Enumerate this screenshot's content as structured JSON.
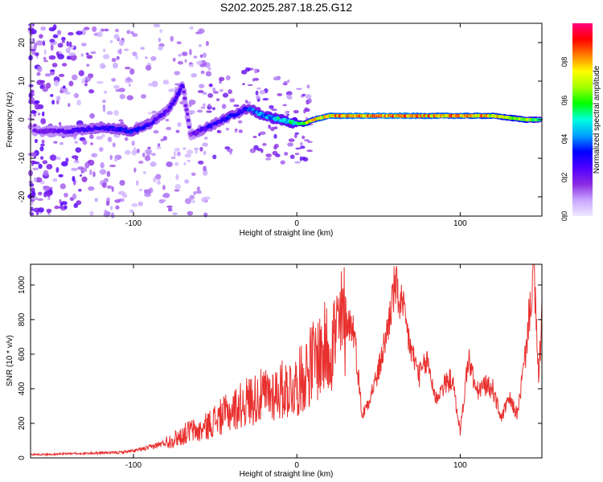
{
  "chart_data": [
    {
      "type": "heatmap",
      "title": "S202.2025.287.18.25.G12",
      "xlabel": "Height of straight line (km)",
      "ylabel": "Frequency (Hz)",
      "xlim": [
        -163,
        150
      ],
      "ylim": [
        -25,
        25
      ],
      "xticks": [
        -100,
        0,
        100
      ],
      "yticks": [
        -20,
        -10,
        0,
        10,
        20
      ],
      "colorbar": {
        "label": "Normalized spectral amplitude",
        "range": [
          0,
          1
        ],
        "ticks": [
          0.0,
          0.2,
          0.4,
          0.6,
          0.8
        ],
        "colors": [
          "#f0e8ff",
          "#c8a6ff",
          "#8a2be2",
          "#5000ff",
          "#0000ff",
          "#00a0ff",
          "#00ffe0",
          "#00ff00",
          "#a0ff00",
          "#ffff00",
          "#ff8000",
          "#ff0000",
          "#ff0080"
        ]
      },
      "trace": {
        "x": [
          -160,
          -140,
          -120,
          -100,
          -90,
          -80,
          -75,
          -70,
          -65,
          -60,
          -55,
          -50,
          -45,
          -40,
          -35,
          -30,
          -25,
          -20,
          -10,
          0,
          5,
          10,
          20,
          40,
          60,
          80,
          100,
          120,
          140,
          148
        ],
        "freq": [
          -3,
          -3,
          -2,
          -3,
          -1,
          2,
          5,
          9,
          -4,
          -3,
          -2,
          -1,
          0,
          1,
          2,
          3,
          2,
          1,
          0,
          -1,
          -1,
          0,
          1,
          1,
          1,
          1,
          1,
          1,
          0,
          0
        ],
        "amplitude": [
          0.2,
          0.25,
          0.3,
          0.35,
          0.3,
          0.25,
          0.3,
          0.25,
          0.2,
          0.25,
          0.3,
          0.3,
          0.3,
          0.35,
          0.3,
          0.35,
          0.4,
          0.45,
          0.5,
          0.55,
          0.7,
          0.8,
          0.85,
          0.9,
          0.9,
          0.85,
          0.85,
          0.8,
          0.7,
          0.6
        ]
      }
    },
    {
      "type": "line",
      "xlabel": "Height of straight line (km)",
      "ylabel": "SNR (10 * v/v)",
      "xlim": [
        -163,
        150
      ],
      "ylim": [
        0,
        1120
      ],
      "xticks": [
        -100,
        0,
        100
      ],
      "yticks": [
        0,
        200,
        400,
        600,
        800,
        1000
      ],
      "series": [
        {
          "name": "SNR",
          "color": "#e8302e",
          "x": [
            -163,
            -150,
            -140,
            -130,
            -120,
            -110,
            -100,
            -90,
            -80,
            -70,
            -65,
            -60,
            -50,
            -40,
            -30,
            -20,
            -10,
            0,
            10,
            20,
            25,
            30,
            35,
            40,
            45,
            50,
            55,
            60,
            65,
            70,
            75,
            80,
            85,
            90,
            95,
            100,
            105,
            110,
            115,
            120,
            125,
            130,
            135,
            140,
            145,
            148,
            150
          ],
          "y": [
            20,
            20,
            25,
            25,
            30,
            30,
            40,
            60,
            90,
            130,
            160,
            150,
            220,
            270,
            330,
            360,
            390,
            420,
            560,
            650,
            730,
            810,
            740,
            240,
            360,
            500,
            720,
            1000,
            850,
            620,
            480,
            560,
            340,
            420,
            460,
            150,
            580,
            380,
            420,
            400,
            230,
            340,
            250,
            600,
            1100,
            450,
            840
          ]
        }
      ]
    }
  ]
}
